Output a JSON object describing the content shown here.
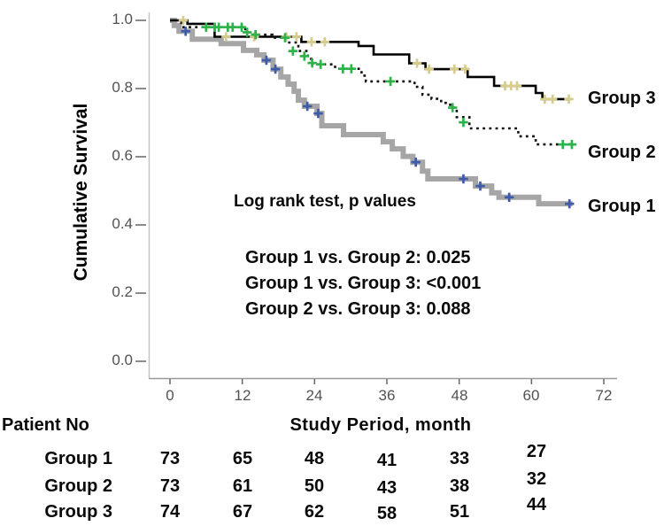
{
  "chart_data": {
    "type": "line",
    "subtype": "kaplan-meier-step-survival",
    "title": "",
    "ylabel": "Cumulative Survival",
    "xlabel": "Study Period, month",
    "xlim": [
      0,
      72
    ],
    "ylim": [
      0.0,
      1.0
    ],
    "grid": false,
    "legend_position": "right-of-curve-ends",
    "x_ticks": [
      "0",
      "12",
      "24",
      "36",
      "48",
      "60",
      "72"
    ],
    "x_tick_values": [
      0,
      12,
      24,
      36,
      48,
      60,
      72
    ],
    "y_ticks": [
      "1.0",
      "0.8",
      "0.6",
      "0.4",
      "0.2",
      "0.0"
    ],
    "y_tick_values": [
      1.0,
      0.8,
      0.6,
      0.4,
      0.2,
      0.0
    ],
    "series": [
      {
        "name": "Group 1",
        "line_color": "#a6a6a6",
        "line_style": "solid-thick",
        "censor_color": "#3c5ba8",
        "end_month": 66.8,
        "steps": [
          [
            0,
            1.0
          ],
          [
            0.7,
            0.985
          ],
          [
            1.5,
            0.968
          ],
          [
            3.7,
            0.945
          ],
          [
            8.5,
            0.932
          ],
          [
            12.2,
            0.912
          ],
          [
            14.4,
            0.899
          ],
          [
            15.6,
            0.883
          ],
          [
            17.1,
            0.857
          ],
          [
            18.4,
            0.834
          ],
          [
            19.6,
            0.813
          ],
          [
            20.6,
            0.792
          ],
          [
            21.3,
            0.766
          ],
          [
            22.3,
            0.748
          ],
          [
            24.4,
            0.727
          ],
          [
            25.2,
            0.691
          ],
          [
            28.8,
            0.665
          ],
          [
            35.4,
            0.644
          ],
          [
            36.9,
            0.623
          ],
          [
            38.7,
            0.601
          ],
          [
            40.3,
            0.584
          ],
          [
            41.9,
            0.558
          ],
          [
            42.8,
            0.535
          ],
          [
            50.7,
            0.514
          ],
          [
            53.4,
            0.494
          ],
          [
            54.6,
            0.481
          ],
          [
            61.2,
            0.462
          ]
        ],
        "censors": [
          [
            2.6,
            0.968
          ],
          [
            16.0,
            0.883
          ],
          [
            17.5,
            0.857
          ],
          [
            22.8,
            0.748
          ],
          [
            24.6,
            0.727
          ],
          [
            40.8,
            0.584
          ],
          [
            48.7,
            0.535
          ],
          [
            51.5,
            0.514
          ],
          [
            56.3,
            0.481
          ],
          [
            66.3,
            0.462
          ]
        ]
      },
      {
        "name": "Group 3",
        "line_color": "#000000",
        "line_style": "solid",
        "censor_color": "#d6cd8a",
        "end_month": 66.5,
        "steps": [
          [
            0,
            1.0
          ],
          [
            2.9,
            0.99
          ],
          [
            7.4,
            0.952
          ],
          [
            21.8,
            0.937
          ],
          [
            31.3,
            0.925
          ],
          [
            33.8,
            0.9
          ],
          [
            39.7,
            0.874
          ],
          [
            42.4,
            0.857
          ],
          [
            49.4,
            0.834
          ],
          [
            53.8,
            0.808
          ],
          [
            60.7,
            0.787
          ],
          [
            61.8,
            0.769
          ]
        ],
        "censors": [
          [
            2.2,
            1.0
          ],
          [
            9.3,
            0.952
          ],
          [
            14.0,
            0.952
          ],
          [
            19.3,
            0.952
          ],
          [
            21.0,
            0.952
          ],
          [
            23.5,
            0.937
          ],
          [
            25.7,
            0.937
          ],
          [
            41.0,
            0.874
          ],
          [
            43.0,
            0.857
          ],
          [
            47.2,
            0.857
          ],
          [
            49.0,
            0.857
          ],
          [
            55.6,
            0.808
          ],
          [
            56.6,
            0.808
          ],
          [
            57.6,
            0.808
          ],
          [
            62.2,
            0.769
          ],
          [
            63.5,
            0.769
          ],
          [
            66.2,
            0.769
          ]
        ]
      },
      {
        "name": "Group 2",
        "line_color": "#111111",
        "line_style": "dotted",
        "censor_color": "#2db34a",
        "end_month": 66.9,
        "steps": [
          [
            0,
            1.0
          ],
          [
            1.9,
            0.98
          ],
          [
            12.5,
            0.965
          ],
          [
            13.4,
            0.958
          ],
          [
            17.0,
            0.949
          ],
          [
            19.6,
            0.935
          ],
          [
            21.3,
            0.91
          ],
          [
            22.9,
            0.887
          ],
          [
            23.7,
            0.871
          ],
          [
            27.4,
            0.858
          ],
          [
            31.8,
            0.838
          ],
          [
            32.5,
            0.821
          ],
          [
            40.6,
            0.805
          ],
          [
            41.9,
            0.782
          ],
          [
            43.4,
            0.77
          ],
          [
            45.0,
            0.758
          ],
          [
            46.5,
            0.744
          ],
          [
            47.6,
            0.716
          ],
          [
            49.7,
            0.683
          ],
          [
            57.8,
            0.66
          ],
          [
            60.7,
            0.636
          ]
        ],
        "censors": [
          [
            6.0,
            0.98
          ],
          [
            7.4,
            0.98
          ],
          [
            8.1,
            0.98
          ],
          [
            9.6,
            0.98
          ],
          [
            10.4,
            0.98
          ],
          [
            11.9,
            0.98
          ],
          [
            12.8,
            0.965
          ],
          [
            14.2,
            0.958
          ],
          [
            19.1,
            0.949
          ],
          [
            20.4,
            0.91
          ],
          [
            22.3,
            0.895
          ],
          [
            23.6,
            0.875
          ],
          [
            25.0,
            0.871
          ],
          [
            28.7,
            0.858
          ],
          [
            30.1,
            0.858
          ],
          [
            36.6,
            0.821
          ],
          [
            46.9,
            0.744
          ],
          [
            48.7,
            0.701
          ],
          [
            65.2,
            0.636
          ],
          [
            66.7,
            0.636
          ]
        ]
      }
    ]
  },
  "annotations": {
    "logrank_title": "Log rank test, p values",
    "p_line_1": "Group 1 vs. Group 2: 0.025",
    "p_line_2": "Group 1 vs. Group 3: <0.001",
    "p_line_3": "Group 2 vs. Group 3: 0.088"
  },
  "curve_labels": {
    "group3": "Group 3",
    "group2": "Group 2",
    "group1": "Group 1"
  },
  "risk_table": {
    "row_header": "Patient No",
    "columns_months": [
      0,
      12,
      24,
      36,
      48,
      60
    ],
    "rows": [
      {
        "label": "Group 1",
        "values": [
          "73",
          "65",
          "48",
          "41",
          "33",
          "27"
        ]
      },
      {
        "label": "Group 2",
        "values": [
          "73",
          "61",
          "50",
          "43",
          "38",
          "32"
        ]
      },
      {
        "label": "Group 3",
        "values": [
          "74",
          "67",
          "62",
          "58",
          "51",
          "44"
        ]
      }
    ]
  }
}
